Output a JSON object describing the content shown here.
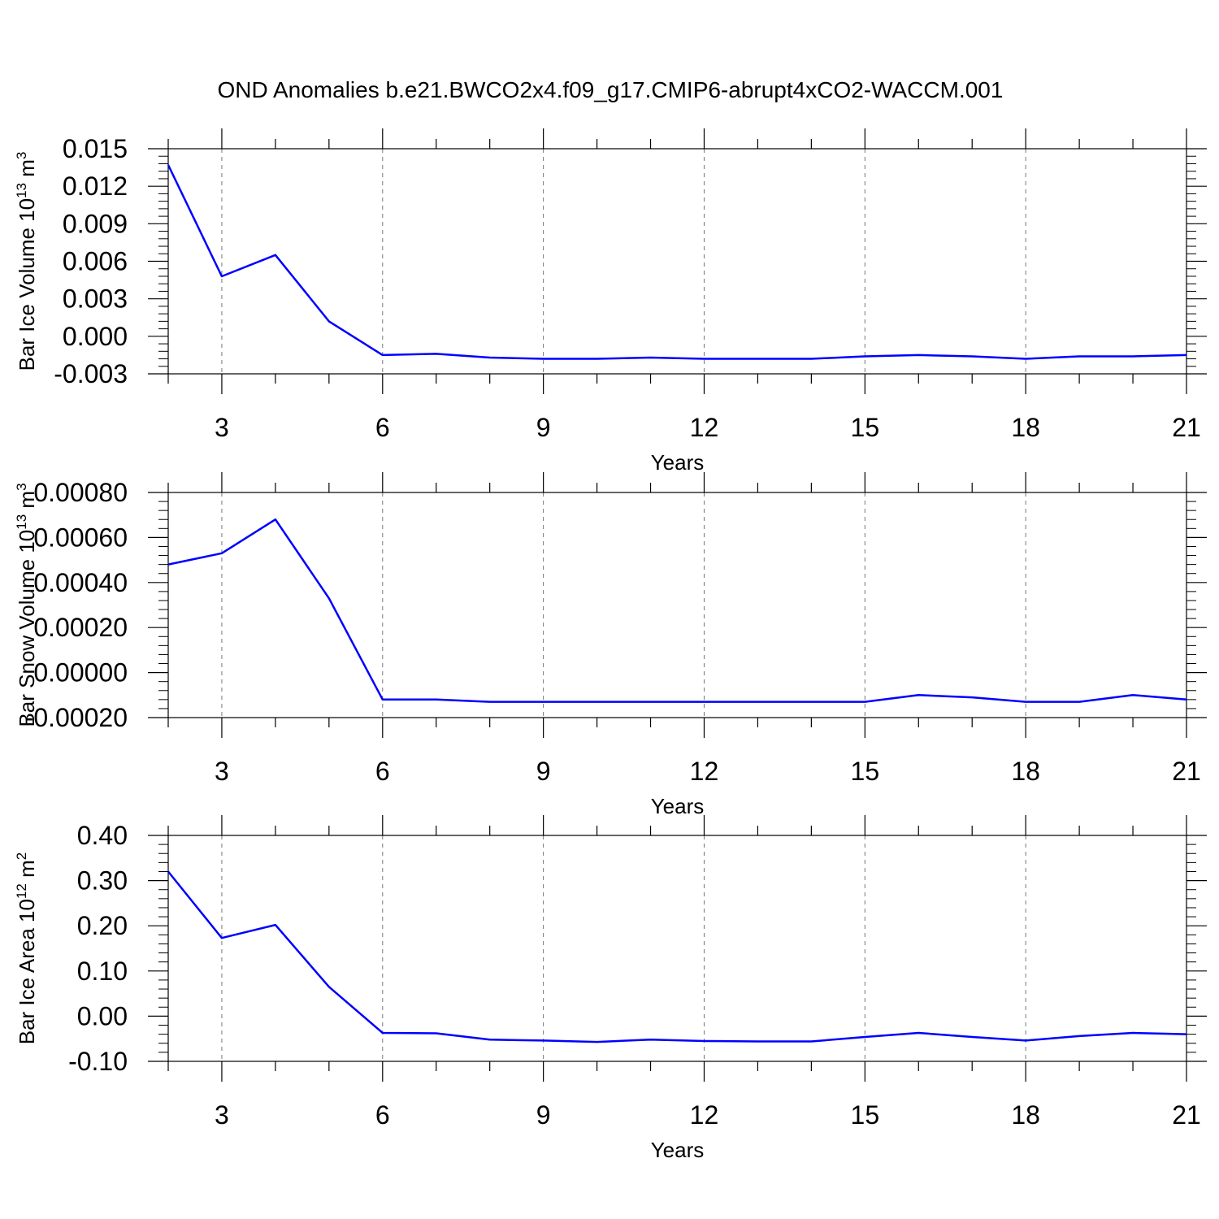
{
  "title": "OND Anomalies b.e21.BWCO2x4.f09_g17.CMIP6-abrupt4xCO2-WACCM.001",
  "colors": {
    "line": "#0000ff",
    "axis": "#000000",
    "grid": "#777777"
  },
  "chart_data": [
    {
      "type": "line",
      "xlabel": "Years",
      "ylabel_main": "Bar Ice Volume 10",
      "ylabel_sup": "13",
      "ylabel_unit": " m",
      "ylabel_unit_sup": "3",
      "xlim": [
        2,
        21
      ],
      "ylim": [
        -0.003,
        0.015
      ],
      "xticks": [
        3,
        6,
        9,
        12,
        15,
        18,
        21
      ],
      "yticks": [
        -0.003,
        0.0,
        0.003,
        0.006,
        0.009,
        0.012,
        0.015
      ],
      "ytick_labels": [
        "-0.003",
        "0.000",
        "0.003",
        "0.006",
        "0.009",
        "0.012",
        "0.015"
      ],
      "grid": "vertical dashed at x ticks",
      "x": [
        2,
        3,
        4,
        5,
        6,
        7,
        8,
        9,
        10,
        11,
        12,
        13,
        14,
        15,
        16,
        17,
        18,
        19,
        20,
        21
      ],
      "series": [
        {
          "values": [
            0.0137,
            0.0048,
            0.0065,
            0.0012,
            -0.0015,
            -0.0014,
            -0.0017,
            -0.0018,
            -0.0018,
            -0.0017,
            -0.0018,
            -0.0018,
            -0.0018,
            -0.0016,
            -0.0015,
            -0.0016,
            -0.0018,
            -0.0016,
            -0.0016,
            -0.0015
          ]
        }
      ]
    },
    {
      "type": "line",
      "xlabel": "Years",
      "ylabel_main": "Bar Snow Volume 10",
      "ylabel_sup": "13",
      "ylabel_unit": " m",
      "ylabel_unit_sup": "3",
      "xlim": [
        2,
        21
      ],
      "ylim": [
        -0.0002,
        0.0008
      ],
      "xticks": [
        3,
        6,
        9,
        12,
        15,
        18,
        21
      ],
      "yticks": [
        -0.0002,
        0.0,
        0.0002,
        0.0004,
        0.0006,
        0.0008
      ],
      "ytick_labels": [
        "-0.00020",
        "0.00000",
        "0.00020",
        "0.00040",
        "0.00060",
        "0.00080"
      ],
      "grid": "vertical dashed at x ticks",
      "x": [
        2,
        3,
        4,
        5,
        6,
        7,
        8,
        9,
        10,
        11,
        12,
        13,
        14,
        15,
        16,
        17,
        18,
        19,
        20,
        21
      ],
      "series": [
        {
          "values": [
            0.00048,
            0.00053,
            0.00068,
            0.00033,
            -0.00012,
            -0.00012,
            -0.00013,
            -0.00013,
            -0.00013,
            -0.00013,
            -0.00013,
            -0.00013,
            -0.00013,
            -0.00013,
            -0.0001,
            -0.00011,
            -0.00013,
            -0.00013,
            -0.0001,
            -0.00012
          ]
        }
      ]
    },
    {
      "type": "line",
      "xlabel": "Years",
      "ylabel_main": "Bar Ice Area 10",
      "ylabel_sup": "12",
      "ylabel_unit": " m",
      "ylabel_unit_sup": "2",
      "xlim": [
        2,
        21
      ],
      "ylim": [
        -0.1,
        0.4
      ],
      "xticks": [
        3,
        6,
        9,
        12,
        15,
        18,
        21
      ],
      "yticks": [
        -0.1,
        0.0,
        0.1,
        0.2,
        0.3,
        0.4
      ],
      "ytick_labels": [
        "-0.10",
        "0.00",
        "0.10",
        "0.20",
        "0.30",
        "0.40"
      ],
      "grid": "vertical dashed at x ticks",
      "x": [
        2,
        3,
        4,
        5,
        6,
        7,
        8,
        9,
        10,
        11,
        12,
        13,
        14,
        15,
        16,
        17,
        18,
        19,
        20,
        21
      ],
      "series": [
        {
          "values": [
            0.32,
            0.173,
            0.202,
            0.065,
            -0.037,
            -0.038,
            -0.052,
            -0.054,
            -0.057,
            -0.052,
            -0.055,
            -0.056,
            -0.056,
            -0.046,
            -0.037,
            -0.046,
            -0.054,
            -0.044,
            -0.037,
            -0.04
          ]
        }
      ]
    }
  ]
}
